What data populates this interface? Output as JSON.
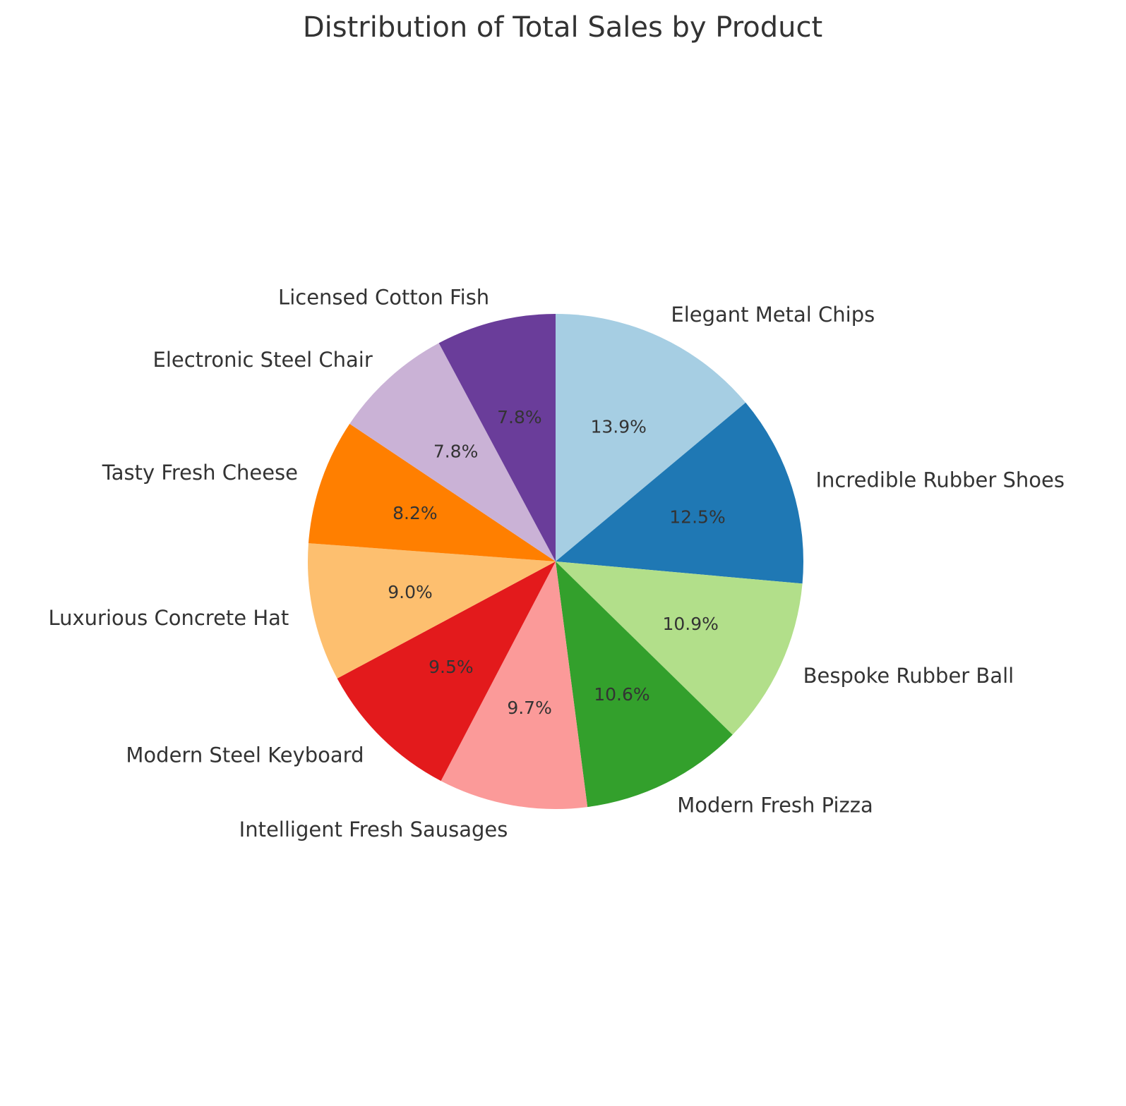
{
  "chart_data": {
    "type": "pie",
    "title": "Distribution of Total Sales by Product",
    "start_angle_deg": 90,
    "direction": "clockwise",
    "slices": [
      {
        "label": "Elegant Metal Chips",
        "pct": 13.9,
        "pct_text": "13.9%",
        "color": "#a6cee3"
      },
      {
        "label": "Incredible Rubber Shoes",
        "pct": 12.5,
        "pct_text": "12.5%",
        "color": "#1f78b4"
      },
      {
        "label": "Bespoke Rubber Ball",
        "pct": 10.9,
        "pct_text": "10.9%",
        "color": "#b2df8a"
      },
      {
        "label": "Modern Fresh Pizza",
        "pct": 10.6,
        "pct_text": "10.6%",
        "color": "#33a02c"
      },
      {
        "label": "Intelligent Fresh Sausages",
        "pct": 9.7,
        "pct_text": "9.7%",
        "color": "#fb9a99"
      },
      {
        "label": "Modern Steel Keyboard",
        "pct": 9.5,
        "pct_text": "9.5%",
        "color": "#e31a1c"
      },
      {
        "label": "Luxurious Concrete Hat",
        "pct": 9.0,
        "pct_text": "9.0%",
        "color": "#fdbf6f"
      },
      {
        "label": "Tasty Fresh Cheese",
        "pct": 8.2,
        "pct_text": "8.2%",
        "color": "#ff7f00"
      },
      {
        "label": "Electronic Steel Chair",
        "pct": 7.8,
        "pct_text": "7.8%",
        "color": "#cab2d6"
      },
      {
        "label": "Licensed Cotton Fish",
        "pct": 7.8,
        "pct_text": "7.8%",
        "color": "#6a3d9a"
      }
    ]
  }
}
